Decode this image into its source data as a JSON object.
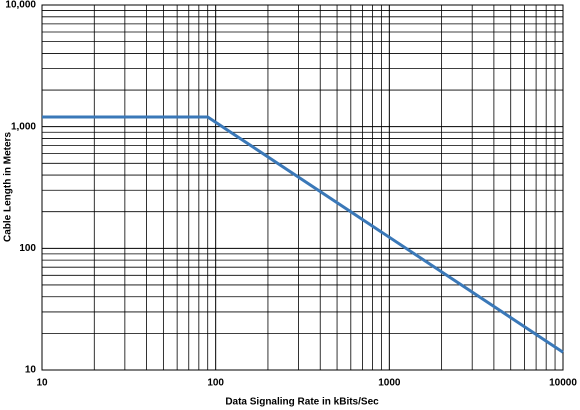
{
  "chart_data": {
    "type": "line",
    "xlabel": "Data Signaling Rate in kBits/Sec",
    "ylabel": "Cable Length in Meters",
    "x": [
      10,
      90,
      10000
    ],
    "series": [
      {
        "color": "#3a78b8",
        "values": [
          1200,
          1200,
          14
        ]
      }
    ],
    "xscale": "log",
    "yscale": "log",
    "xlim": [
      10,
      10000
    ],
    "ylim": [
      10,
      10000
    ],
    "xticks": [
      10,
      100,
      1000,
      10000
    ],
    "yticks": [
      10,
      100,
      {
        "value": 1000,
        "label": "1,000"
      },
      {
        "value": 10000,
        "label": "10,000"
      }
    ],
    "grid": true,
    "minor_grid": true
  }
}
